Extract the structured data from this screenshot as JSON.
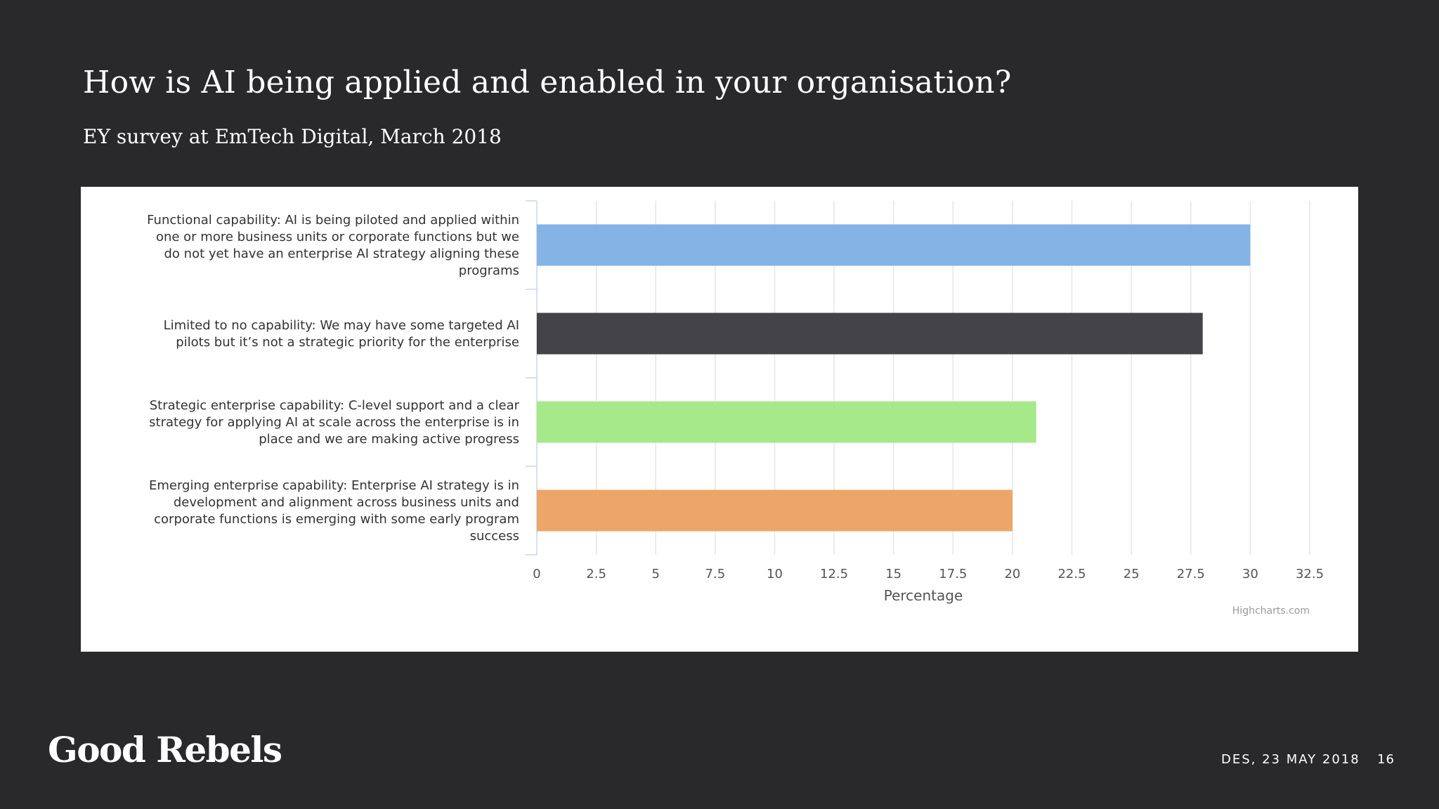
{
  "slide": {
    "title": "How is AI being applied and enabled in your organisation?",
    "subtitle": "EY survey at EmTech Digital, March 2018"
  },
  "chart_data": {
    "type": "bar",
    "orientation": "horizontal",
    "categories": [
      "Functional capability: AI is being piloted and applied within one or more business units or corporate functions but we do not yet have an enterprise AI strategy aligning these programs",
      "Limited to no capability: We may have some targeted AI pilots but it’s not a strategic priority for the enterprise",
      "Strategic enterprise capability: C-level support and a clear strategy for applying AI at scale across the enterprise is in place and we are making active progress",
      "Emerging enterprise capability: Enterprise AI strategy is in development and alignment across business units and corporate functions is emerging with some early program success"
    ],
    "category_lines": [
      [
        "Functional capability: AI is being piloted and applied within",
        "one or more business units or corporate functions but we",
        "do not yet have an enterprise AI strategy aligning these",
        "programs"
      ],
      [
        "Limited to no capability: We may have some targeted AI",
        "pilots but it’s not a strategic priority for the enterprise"
      ],
      [
        "Strategic enterprise capability: C-level support and a clear",
        "strategy for applying AI at scale across the enterprise is in",
        "place and we are making active progress"
      ],
      [
        "Emerging enterprise capability: Enterprise AI strategy is in",
        "development and alignment across business units and",
        "corporate functions is emerging with some early program",
        "success"
      ]
    ],
    "values": [
      30,
      28,
      21,
      20
    ],
    "colors": [
      "#84b4e6",
      "#434348",
      "#a6e98b",
      "#eda667"
    ],
    "xlabel": "Percentage",
    "xlim": [
      0,
      32.5
    ],
    "xticks": [
      0,
      2.5,
      5,
      7.5,
      10,
      12.5,
      15,
      17.5,
      20,
      22.5,
      25,
      27.5,
      30,
      32.5
    ],
    "grid": true,
    "legend": "none",
    "credits": "Highcharts.com"
  },
  "footer": {
    "brand": "Good Rebels",
    "date": "DES, 23 MAY 2018",
    "page": "16"
  }
}
